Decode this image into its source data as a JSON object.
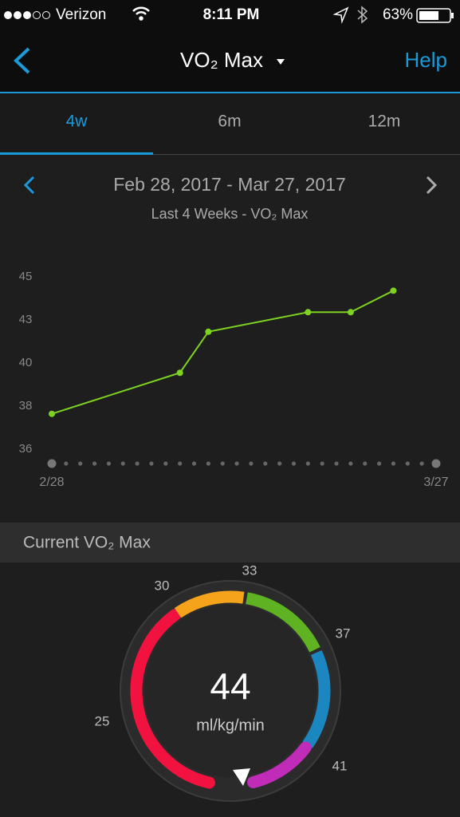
{
  "status_bar": {
    "carrier": "Verizon",
    "time": "8:11 PM",
    "battery": "63%"
  },
  "header": {
    "title": "VO₂ Max",
    "help": "Help"
  },
  "tabs": [
    "4w",
    "6m",
    "12m"
  ],
  "date_range": "Feb 28, 2017 - Mar 27, 2017",
  "chart_data": {
    "type": "line",
    "subtitle": "Last 4 Weeks - VO₂ Max",
    "x": [
      0,
      9,
      11,
      18,
      21,
      24
    ],
    "values": [
      37.8,
      39.9,
      42.0,
      43.0,
      43.0,
      44.1
    ],
    "color": "#7ed321",
    "xlim": [
      0,
      27
    ],
    "xticks": [
      {
        "value": 0,
        "label": "2/28"
      },
      {
        "value": 27,
        "label": "3/27"
      }
    ],
    "ylim": [
      35.3,
      45.5
    ],
    "yticks": [
      {
        "value": 36,
        "label": "36"
      },
      {
        "value": 38.2,
        "label": "38"
      },
      {
        "value": 40.4,
        "label": "40"
      },
      {
        "value": 42.6,
        "label": "43"
      },
      {
        "value": 44.8,
        "label": "45"
      }
    ]
  },
  "current": {
    "title": "Current VO₂ Max",
    "value": 44,
    "unit": "ml/kg/min",
    "ticks": [
      25,
      30,
      33,
      37,
      41
    ],
    "colors": [
      "#f2123f",
      "#f5a31a",
      "#5fb322",
      "#1b86c0",
      "#c02bb8"
    ]
  }
}
